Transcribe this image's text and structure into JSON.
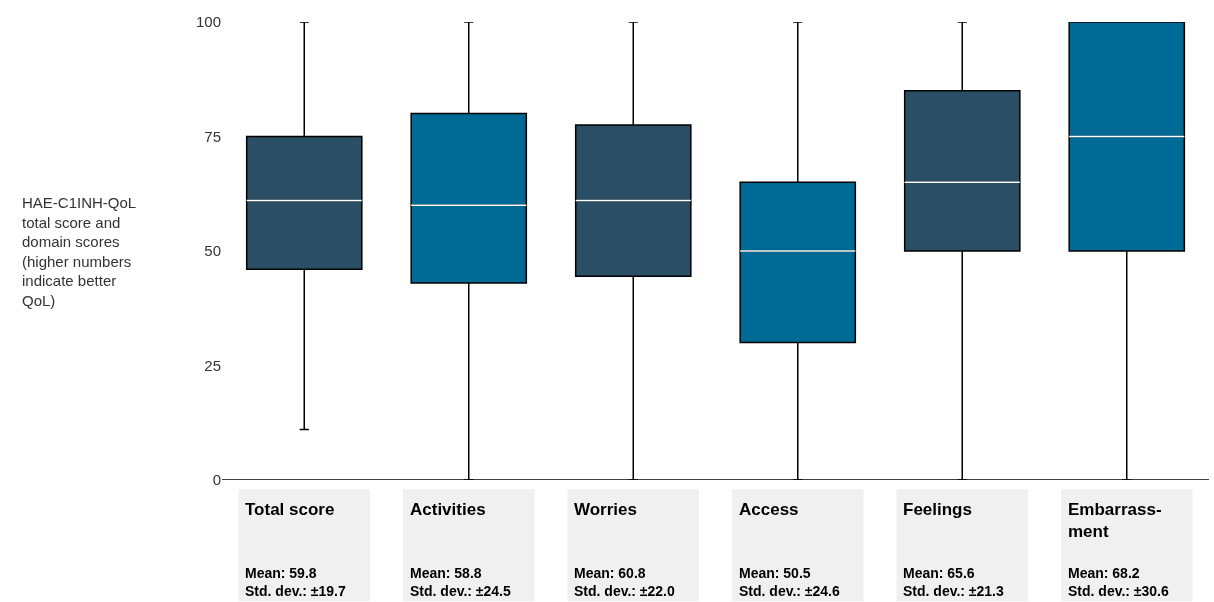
{
  "chart_data": {
    "type": "box",
    "ylabel": "HAE-C1INH-QoL\ntotal score and\ndomain scores\n(higher numbers\nindicate better\nQoL)",
    "categories": [
      "Total score",
      "Activities",
      "Worries",
      "Access",
      "Feelings",
      "Embarrass-\nment"
    ],
    "colors": [
      "#2a4e63",
      "#006a96",
      "#2a4e63",
      "#006a96",
      "#2a4e63",
      "#006a96"
    ],
    "boxes": [
      {
        "low": 11,
        "q1": 46,
        "median": 61,
        "q3": 75,
        "high": 100
      },
      {
        "low": 0,
        "q1": 43,
        "median": 60,
        "q3": 80,
        "high": 100
      },
      {
        "low": 0,
        "q1": 44.5,
        "median": 61,
        "q3": 77.5,
        "high": 100
      },
      {
        "low": 0,
        "q1": 30,
        "median": 50,
        "q3": 65,
        "high": 100
      },
      {
        "low": 0,
        "q1": 50,
        "median": 65,
        "q3": 85,
        "high": 100
      },
      {
        "low": 0,
        "q1": 50,
        "median": 75,
        "q3": 100,
        "high": 100
      }
    ],
    "annotations": [
      "Mean: 59.8\nStd. dev.: ±19.7",
      "Mean: 58.8\nStd. dev.: ±24.5",
      "Mean: 60.8\nStd. dev.: ±22.0",
      "Mean: 50.5\nStd. dev.: ±24.6",
      "Mean: 65.6\nStd. dev.: ±21.3",
      "Mean: 68.2\nStd. dev.: ±30.6"
    ],
    "ylim": [
      0,
      100
    ],
    "yticks": [
      0,
      25,
      50,
      75,
      100
    ]
  }
}
